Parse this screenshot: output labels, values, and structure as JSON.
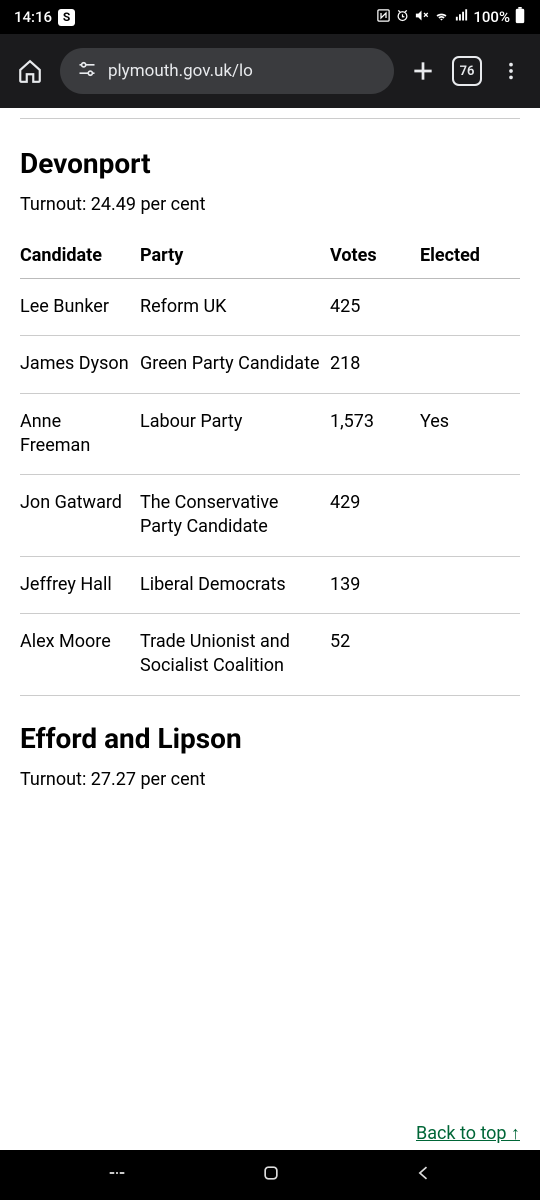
{
  "status": {
    "time": "14:16",
    "s_badge": "S",
    "battery": "100%"
  },
  "browser": {
    "url_display": "plymouth.gov.uk/lo",
    "tab_count": "76"
  },
  "section1": {
    "title": "Devonport",
    "turnout": "Turnout: 24.49 per cent",
    "headers": {
      "candidate": "Candidate",
      "party": "Party",
      "votes": "Votes",
      "elected": "Elected"
    },
    "rows": [
      {
        "candidate": "Lee Bunker",
        "party": "Reform UK",
        "votes": "425",
        "elected": ""
      },
      {
        "candidate": "James Dyson",
        "party": "Green Party Candidate",
        "votes": "218",
        "elected": ""
      },
      {
        "candidate": "Anne Freeman",
        "party": "Labour Party",
        "votes": "1,573",
        "elected": "Yes"
      },
      {
        "candidate": "Jon Gatward",
        "party": "The Conservative Party Candidate",
        "votes": "429",
        "elected": ""
      },
      {
        "candidate": "Jeffrey Hall",
        "party": "Liberal Democrats",
        "votes": "139",
        "elected": ""
      },
      {
        "candidate": "Alex Moore",
        "party": "Trade Unionist and Socialist Coalition",
        "votes": "52",
        "elected": ""
      }
    ]
  },
  "section2": {
    "title": "Efford and Lipson",
    "turnout": "Turnout: 27.27 per cent"
  },
  "back_to_top": "Back to top ↑"
}
